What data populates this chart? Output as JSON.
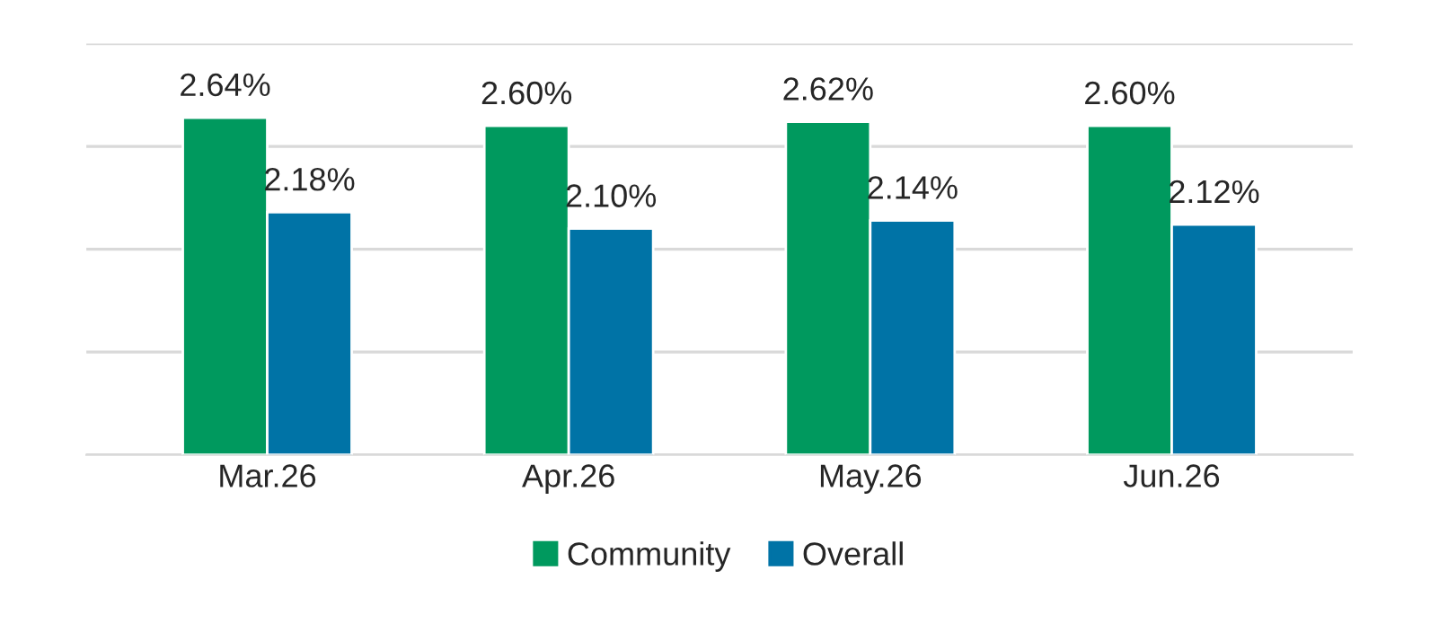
{
  "chart_data": {
    "type": "bar",
    "categories": [
      "Mar.26",
      "Apr.26",
      "May.26",
      "Jun.26"
    ],
    "series": [
      {
        "name": "Community",
        "color": "#00995e",
        "values": [
          2.64,
          2.6,
          2.62,
          2.6
        ],
        "value_labels": [
          "2.64%",
          "2.60%",
          "2.62%",
          "2.60%"
        ]
      },
      {
        "name": "Overall",
        "color": "#0073a6",
        "values": [
          2.18,
          2.1,
          2.14,
          2.12
        ],
        "value_labels": [
          "2.18%",
          "2.10%",
          "2.14%",
          "2.12%"
        ]
      }
    ],
    "ylim": [
      1.0,
      3.0
    ],
    "yticks": [
      {
        "value": 1.0,
        "label": null
      },
      {
        "value": 1.5,
        "label": null
      },
      {
        "value": 2.0,
        "label": null
      },
      {
        "value": 2.5,
        "label": null
      },
      {
        "value": 3.0,
        "label": null
      }
    ],
    "tick_labels": "x",
    "grid": "y",
    "legend": "bottom"
  }
}
